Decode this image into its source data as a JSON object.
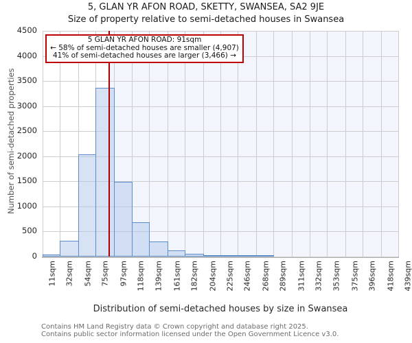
{
  "title": "5, GLAN YR AFON ROAD, SKETTY, SWANSEA, SA2 9JE",
  "subtitle": "Size of property relative to semi-detached houses in Swansea",
  "annotation": {
    "line1": "5 GLAN YR AFON ROAD: 91sqm",
    "line2": "← 58% of semi-detached houses are smaller (4,907)",
    "line3": "41% of semi-detached houses are larger (3,466) →"
  },
  "chart_data": {
    "type": "bar",
    "title": "Size of property relative to semi-detached houses in Swansea",
    "xlabel": "Distribution of semi-detached houses by size in Swansea",
    "ylabel": "Number of semi-detached properties",
    "tick_labels": [
      "11sqm",
      "32sqm",
      "54sqm",
      "75sqm",
      "97sqm",
      "118sqm",
      "139sqm",
      "161sqm",
      "182sqm",
      "204sqm",
      "225sqm",
      "246sqm",
      "268sqm",
      "289sqm",
      "311sqm",
      "332sqm",
      "353sqm",
      "375sqm",
      "396sqm",
      "418sqm",
      "439sqm"
    ],
    "bin_edges_sqm": [
      11,
      32,
      54,
      75,
      97,
      118,
      139,
      161,
      182,
      204,
      225,
      246,
      268,
      289,
      311,
      332,
      353,
      375,
      396,
      418,
      439
    ],
    "values": [
      35,
      320,
      2040,
      3370,
      1490,
      680,
      300,
      125,
      55,
      25,
      15,
      12,
      10,
      0,
      0,
      0,
      0,
      0,
      0,
      0
    ],
    "marker_value_sqm": 91,
    "ylim": [
      0,
      4500
    ],
    "ytick_step": 500,
    "grid": true,
    "legend": "none",
    "colors": {
      "bar_fill": "rgba(176,200,234,0.5)",
      "bar_edge": "#5b8bc8",
      "marker_line": "#aa0000",
      "annotation_border": "#c00000",
      "shade_right_of_marker": "#f2f5fc",
      "gridline": "#cdcdcd",
      "axis_line": "#b0b0b0"
    }
  },
  "footer": {
    "line1": "Contains HM Land Registry data © Crown copyright and database right 2025.",
    "line2": "Contains public sector information licensed under the Open Government Licence v3.0."
  }
}
